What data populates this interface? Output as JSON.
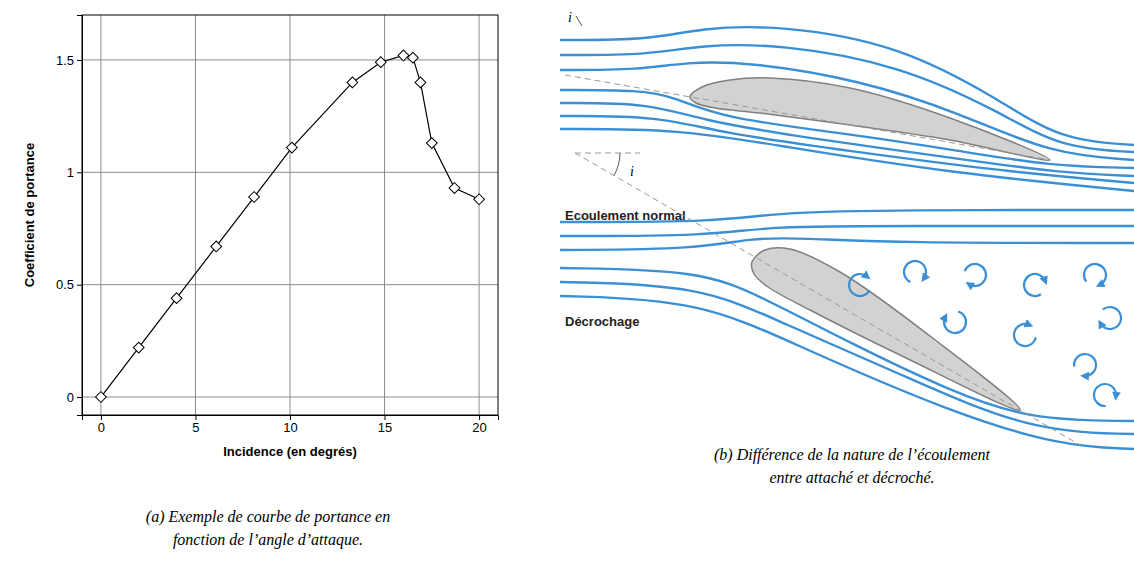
{
  "chart_data": {
    "type": "line",
    "x": [
      0,
      2,
      4,
      6.1,
      8.1,
      10.1,
      13.3,
      14.8,
      16,
      16.5,
      16.9,
      17.5,
      18.7,
      20
    ],
    "values": [
      0,
      0.22,
      0.44,
      0.67,
      0.89,
      1.11,
      1.4,
      1.49,
      1.52,
      1.51,
      1.4,
      1.13,
      0.93,
      0.88
    ],
    "xlabel": "Incidence (en degrés)",
    "ylabel": "Coefficient de portance",
    "xlim": [
      -1,
      21
    ],
    "ylim": [
      -0.08,
      1.7
    ],
    "xticks": [
      0,
      5,
      10,
      15,
      20
    ],
    "yticks": [
      0,
      0.5,
      1,
      1.5
    ],
    "grid": true,
    "color": "#000000",
    "marker": "diamond",
    "line_style": "solid"
  },
  "captions": [
    [
      "(a) Exemple de courbe de portance en",
      "fonction de l’angle d’attaque."
    ],
    [
      "(b) Différence de la nature de l’écoulement",
      "entre attaché et décroché."
    ]
  ],
  "diagram": {
    "panels": [
      {
        "angle_label": "i",
        "label": "Ecoulement normal"
      },
      {
        "angle_label": "i",
        "label": "Décrochage"
      }
    ]
  }
}
